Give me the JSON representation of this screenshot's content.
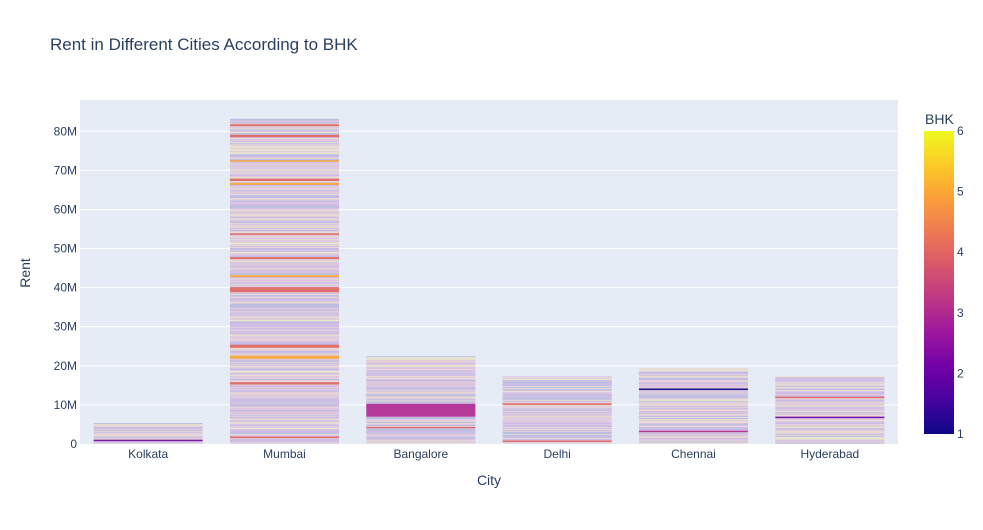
{
  "chart_data": {
    "type": "bar",
    "title": "Rent in Different Cities According to BHK",
    "xlabel": "City",
    "ylabel": "Rent",
    "categories": [
      "Kolkata",
      "Mumbai",
      "Bangalore",
      "Delhi",
      "Chennai",
      "Hyderabad"
    ],
    "totals": [
      5300000,
      83100000,
      22300000,
      17200000,
      19300000,
      17200000
    ],
    "ylim": [
      0,
      88000000
    ],
    "yticks": [
      0,
      10000000,
      20000000,
      30000000,
      40000000,
      50000000,
      60000000,
      70000000,
      80000000
    ],
    "ytick_labels": [
      "0",
      "10M",
      "20M",
      "30M",
      "40M",
      "50M",
      "60M",
      "70M",
      "80M"
    ],
    "grid": true,
    "colorbar": {
      "title": "BHK",
      "min": 1,
      "max": 6,
      "ticks": [
        1,
        2,
        3,
        4,
        5,
        6
      ],
      "ticklabels": [
        "1",
        "2",
        "3",
        "4",
        "5",
        "6"
      ],
      "colorscale": [
        "#0d0887",
        "#46039f",
        "#7201a8",
        "#9c179e",
        "#bd3786",
        "#d8576b",
        "#ed7953",
        "#fb9f3a",
        "#fdca26",
        "#f0f921"
      ]
    },
    "highlighted_segments": [
      {
        "category": "Kolkata",
        "from": 900000,
        "to": 1100000,
        "bhk": 2
      },
      {
        "category": "Mumbai",
        "from": 1500000,
        "to": 1900000,
        "bhk": 4
      },
      {
        "category": "Mumbai",
        "from": 15200000,
        "to": 15800000,
        "bhk": 4
      },
      {
        "category": "Mumbai",
        "from": 21800000,
        "to": 22600000,
        "bhk": 5
      },
      {
        "category": "Mumbai",
        "from": 24600000,
        "to": 25400000,
        "bhk": 4
      },
      {
        "category": "Mumbai",
        "from": 38800000,
        "to": 40100000,
        "bhk": 4
      },
      {
        "category": "Mumbai",
        "from": 42700000,
        "to": 43200000,
        "bhk": 5
      },
      {
        "category": "Mumbai",
        "from": 47300000,
        "to": 47800000,
        "bhk": 4
      },
      {
        "category": "Mumbai",
        "from": 53500000,
        "to": 53900000,
        "bhk": 4
      },
      {
        "category": "Mumbai",
        "from": 66300000,
        "to": 66800000,
        "bhk": 5
      },
      {
        "category": "Mumbai",
        "from": 67300000,
        "to": 67900000,
        "bhk": 4
      },
      {
        "category": "Mumbai",
        "from": 72200000,
        "to": 72600000,
        "bhk": 5
      },
      {
        "category": "Mumbai",
        "from": 78500000,
        "to": 79100000,
        "bhk": 4
      },
      {
        "category": "Mumbai",
        "from": 81300000,
        "to": 81800000,
        "bhk": 4
      },
      {
        "category": "Bangalore",
        "from": 4100000,
        "to": 4400000,
        "bhk": 4
      },
      {
        "category": "Bangalore",
        "from": 7000000,
        "to": 10300000,
        "bhk": 3
      },
      {
        "category": "Delhi",
        "from": 700000,
        "to": 900000,
        "bhk": 4
      },
      {
        "category": "Delhi",
        "from": 10000000,
        "to": 10400000,
        "bhk": 4
      },
      {
        "category": "Chennai",
        "from": 3200000,
        "to": 3400000,
        "bhk": 3
      },
      {
        "category": "Chennai",
        "from": 13800000,
        "to": 14200000,
        "bhk": 1
      },
      {
        "category": "Hyderabad",
        "from": 6800000,
        "to": 7000000,
        "bhk": 2
      },
      {
        "category": "Hyderabad",
        "from": 11800000,
        "to": 12100000,
        "bhk": 4
      }
    ],
    "legend_placement": "right (colorbar)"
  }
}
